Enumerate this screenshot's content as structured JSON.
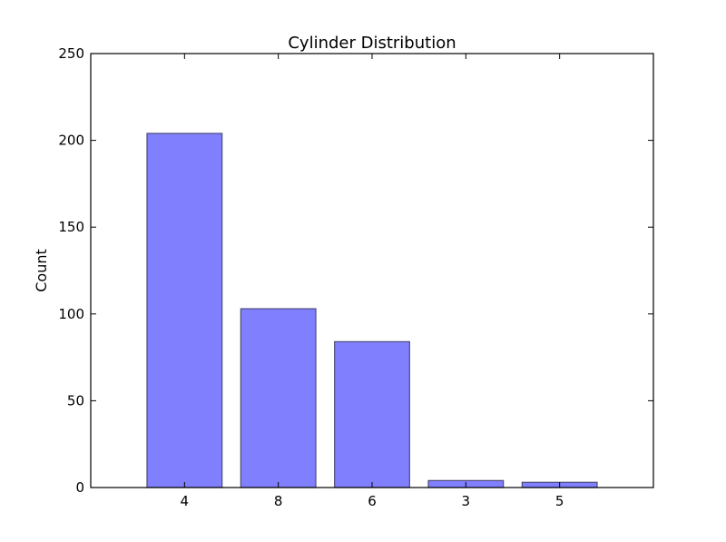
{
  "chart_data": {
    "type": "bar",
    "title": "Cylinder Distribution",
    "xlabel": "",
    "ylabel": "Count",
    "categories": [
      "4",
      "8",
      "6",
      "3",
      "5"
    ],
    "values": [
      204,
      103,
      84,
      4,
      3
    ],
    "ylim": [
      0,
      250
    ],
    "yticks": [
      0,
      50,
      100,
      150,
      200,
      250
    ],
    "grid": false,
    "bar_color": "#8080ff",
    "bar_edge_color": "#4a4a7a"
  }
}
